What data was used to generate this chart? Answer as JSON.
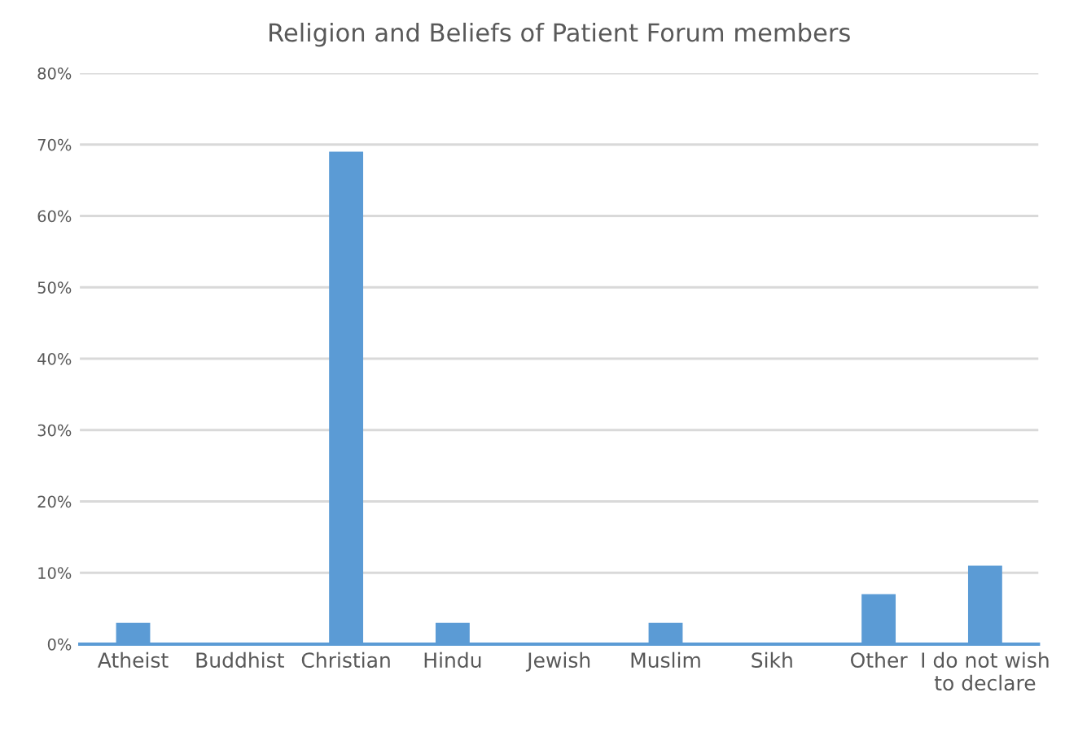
{
  "chart_data": {
    "type": "bar",
    "title": "Religion and Beliefs of Patient Forum members",
    "categories": [
      "Atheist",
      "Buddhist",
      "Christian",
      "Hindu",
      "Jewish",
      "Muslim",
      "Sikh",
      "Other",
      "I do not wish\nto declare"
    ],
    "values": [
      3,
      0,
      69,
      3,
      0,
      3,
      0,
      7,
      11
    ],
    "color": "#5b9bd5",
    "ylim": [
      0,
      80
    ],
    "yticks": [
      {
        "value": 0,
        "label": "0%"
      },
      {
        "value": 10,
        "label": "10%"
      },
      {
        "value": 20,
        "label": "20%"
      },
      {
        "value": 30,
        "label": "30%"
      },
      {
        "value": 40,
        "label": "40%"
      },
      {
        "value": 50,
        "label": "50%"
      },
      {
        "value": 60,
        "label": "60%"
      },
      {
        "value": 70,
        "label": "70%"
      },
      {
        "value": 80,
        "label": "80%"
      }
    ],
    "grid": "y"
  }
}
